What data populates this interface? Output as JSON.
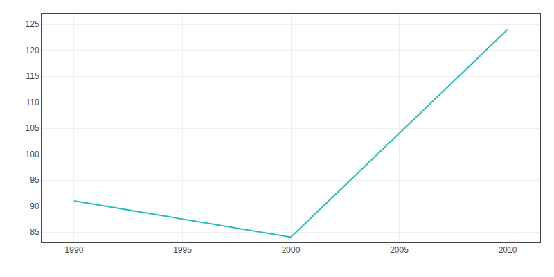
{
  "chart_data": {
    "type": "line",
    "x": [
      1990,
      2000,
      2010
    ],
    "values": [
      91,
      84,
      124
    ],
    "color": "#29BABA",
    "xlim": [
      1988.5,
      2011.5
    ],
    "ylim": [
      83,
      127
    ],
    "xticks": [
      1990,
      1995,
      2000,
      2005,
      2010
    ],
    "yticks": [
      85,
      90,
      95,
      100,
      105,
      110,
      115,
      120,
      125
    ],
    "grid": true
  }
}
